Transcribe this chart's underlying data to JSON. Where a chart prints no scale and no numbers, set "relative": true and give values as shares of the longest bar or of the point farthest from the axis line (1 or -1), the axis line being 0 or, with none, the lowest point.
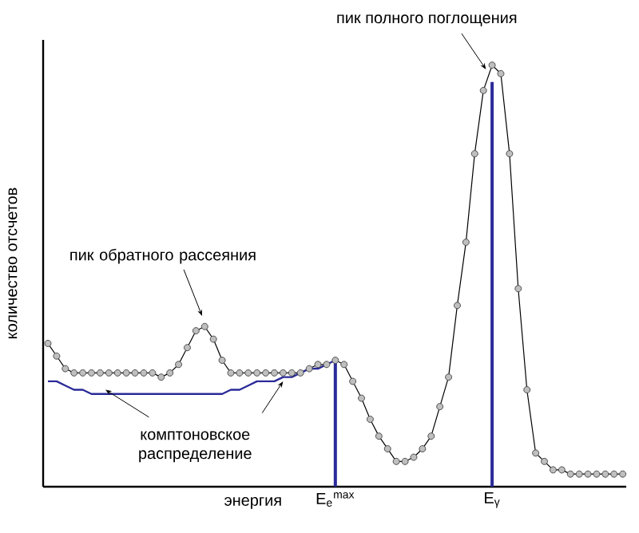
{
  "chart_data": {
    "type": "line",
    "relative": true,
    "ylabel": "количество отсчетов",
    "xlabel": "энергия",
    "categories": [
      null,
      null,
      null,
      null,
      null,
      null,
      null,
      null,
      null,
      null,
      null,
      null,
      null,
      null,
      null,
      null,
      null,
      null,
      null,
      null,
      null,
      null,
      null,
      null,
      null,
      null,
      null,
      null,
      null,
      null,
      null,
      null,
      null,
      "E$_{e}$$^{max}$",
      null,
      null,
      null,
      null,
      null,
      null,
      null,
      null,
      null,
      null,
      null,
      null,
      null,
      null,
      null,
      null,
      null,
      "E$_{γ}$",
      null,
      null,
      null,
      null,
      null,
      null,
      null,
      null,
      null,
      null,
      null,
      null,
      null,
      null,
      null
    ],
    "series": [
      {
        "color": "#000000",
        "marker": "circle",
        "values": [
          0.34,
          0.31,
          0.28,
          0.27,
          0.27,
          0.27,
          0.27,
          0.27,
          0.27,
          0.27,
          0.27,
          0.27,
          0.27,
          0.26,
          0.27,
          0.29,
          0.33,
          0.37,
          0.38,
          0.35,
          0.3,
          0.27,
          0.27,
          0.27,
          0.27,
          0.27,
          0.27,
          0.27,
          0.27,
          0.27,
          0.28,
          0.29,
          0.29,
          0.3,
          0.29,
          0.25,
          0.21,
          0.16,
          0.12,
          0.09,
          0.06,
          0.06,
          0.07,
          0.09,
          0.12,
          0.19,
          0.26,
          0.43,
          0.58,
          0.79,
          0.94,
          1.0,
          0.98,
          0.79,
          0.47,
          0.23,
          0.08,
          0.06,
          0.04,
          0.04,
          0.03,
          0.03,
          0.03,
          0.03,
          0.03,
          0.03,
          0.03
        ]
      },
      {
        "color": "#2b2b9a",
        "values": [
          0.25,
          0.25,
          0.24,
          0.23,
          0.23,
          0.22,
          0.22,
          0.22,
          0.22,
          0.22,
          0.22,
          0.22,
          0.22,
          0.22,
          0.22,
          0.22,
          0.22,
          0.22,
          0.22,
          0.22,
          0.22,
          0.23,
          0.23,
          0.24,
          0.25,
          0.25,
          0.25,
          0.26,
          0.26,
          0.27,
          0.28,
          0.28,
          0.29,
          0.3,
          null,
          null,
          null,
          null,
          null,
          null,
          null,
          null,
          null,
          null,
          null,
          null,
          null,
          null,
          null,
          null,
          null,
          null,
          null,
          null,
          null,
          null,
          null,
          null,
          null,
          null,
          null,
          null,
          null,
          null,
          null,
          null,
          null
        ]
      },
      {
        "type": "bar",
        "color": "#2b2b9a",
        "values": [
          null,
          null,
          null,
          null,
          null,
          null,
          null,
          null,
          null,
          null,
          null,
          null,
          null,
          null,
          null,
          null,
          null,
          null,
          null,
          null,
          null,
          null,
          null,
          null,
          null,
          null,
          null,
          null,
          null,
          null,
          null,
          null,
          null,
          0.3,
          null,
          null,
          null,
          null,
          null,
          null,
          null,
          null,
          null,
          null,
          null,
          null,
          null,
          null,
          null,
          null,
          null,
          0.96,
          null,
          null,
          null,
          null,
          null,
          null,
          null,
          null,
          null,
          null,
          null,
          null,
          null,
          null,
          null
        ]
      }
    ],
    "annotations": [
      {
        "text": "пик полного поглощения",
        "x": "E$_{γ}$",
        "y": 1.0
      },
      "пик обратного рассеяния",
      "комптоновское распределение"
    ]
  }
}
